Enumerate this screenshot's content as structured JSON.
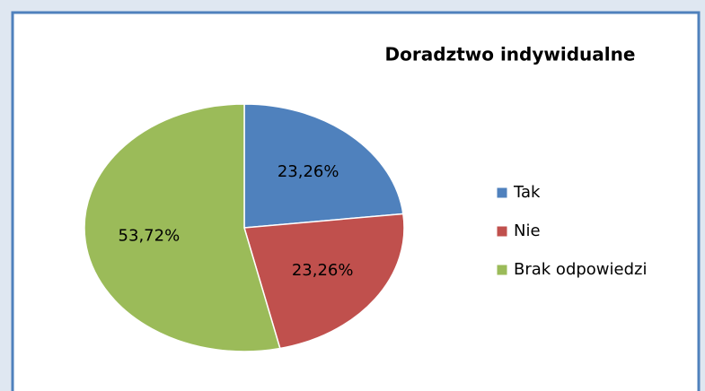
{
  "chart_data": {
    "type": "pie",
    "title": "Doradztwo indywidualne",
    "categories": [
      "Tak",
      "Nie",
      "Brak odpowiedzi"
    ],
    "values": [
      23.26,
      23.26,
      53.72
    ],
    "value_labels": [
      "23,26%",
      "23,26%",
      "53,72%"
    ],
    "colors": [
      "#4f81bd",
      "#c0504d",
      "#9bbb59"
    ],
    "legend": "right"
  }
}
